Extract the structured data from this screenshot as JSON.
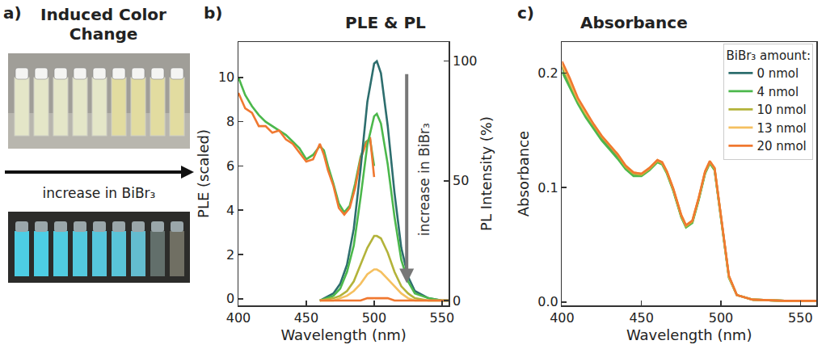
{
  "panel_a": {
    "panel_label": "a)",
    "title": "Induced Color Change",
    "arrow_label": "increase in BiBr₃"
  },
  "chart_data": [
    {
      "panel_label": "b)",
      "type": "line",
      "title": "PLE & PL",
      "x_label": "Wavelength (nm)",
      "y_label": "PLE (scaled)",
      "y2_label": "PL Intensity (%)",
      "xlim": [
        400,
        555
      ],
      "xticks": [
        400,
        450,
        500,
        550
      ],
      "ylim": [
        -0.3,
        11.6
      ],
      "yticks": [
        0,
        2,
        4,
        6,
        8,
        10
      ],
      "y2lim": [
        -2,
        108
      ],
      "y2ticks": [
        0,
        50,
        100
      ],
      "grid": false,
      "annotations": [
        "increase in BiBr₃"
      ],
      "series": [
        {
          "color": "#4cb84c",
          "x": [
            400,
            405,
            410,
            415,
            420,
            425,
            430,
            435,
            440,
            445,
            450,
            455,
            460,
            463,
            466,
            470,
            474,
            478,
            482,
            486,
            490,
            494,
            497,
            500
          ],
          "values": [
            10.0,
            9.2,
            8.7,
            8.3,
            8.0,
            7.8,
            7.6,
            7.4,
            7.1,
            6.8,
            6.3,
            6.5,
            6.9,
            6.7,
            6.0,
            5.2,
            4.3,
            3.9,
            4.2,
            5.2,
            6.4,
            7.1,
            7.2,
            6.0
          ]
        },
        {
          "color": "#f07830",
          "x": [
            400,
            405,
            410,
            415,
            420,
            425,
            430,
            435,
            440,
            445,
            450,
            455,
            460,
            463,
            466,
            470,
            474,
            478,
            482,
            486,
            490,
            494,
            497,
            500
          ],
          "values": [
            9.3,
            8.6,
            8.4,
            7.8,
            7.8,
            7.5,
            7.6,
            7.2,
            7.0,
            6.6,
            6.2,
            6.3,
            7.0,
            6.5,
            5.8,
            5.1,
            4.1,
            3.8,
            4.1,
            5.0,
            6.3,
            7.0,
            7.3,
            5.5
          ]
        },
        {
          "color": "#2d6e6e",
          "axis": "y2",
          "x": [
            460,
            470,
            475,
            480,
            485,
            490,
            495,
            500,
            502,
            505,
            510,
            515,
            520,
            525,
            530,
            540,
            550,
            555
          ],
          "values": [
            0,
            3,
            7,
            15,
            30,
            55,
            83,
            99,
            100,
            95,
            73,
            45,
            22,
            10,
            4,
            1,
            0,
            0
          ]
        },
        {
          "color": "#4cb84c",
          "axis": "y2",
          "x": [
            460,
            470,
            475,
            480,
            485,
            490,
            495,
            500,
            502,
            505,
            510,
            515,
            520,
            525,
            530,
            540,
            550,
            555
          ],
          "values": [
            0,
            2,
            5,
            12,
            23,
            43,
            65,
            77,
            78,
            74,
            57,
            35,
            17,
            8,
            3,
            1,
            0,
            0
          ]
        },
        {
          "color": "#b3b33a",
          "axis": "y2",
          "x": [
            460,
            470,
            475,
            480,
            485,
            490,
            495,
            500,
            502,
            505,
            510,
            515,
            520,
            525,
            530,
            540,
            550,
            555
          ],
          "values": [
            0,
            1,
            2,
            4,
            8,
            15,
            22,
            27,
            27,
            26,
            20,
            12,
            6,
            3,
            1,
            0,
            0,
            0
          ]
        },
        {
          "color": "#f5c060",
          "axis": "y2",
          "x": [
            460,
            470,
            475,
            480,
            485,
            490,
            495,
            500,
            502,
            505,
            510,
            515,
            520,
            525,
            530,
            540,
            550,
            555
          ],
          "values": [
            0,
            0,
            1,
            2,
            4,
            7,
            11,
            13,
            13,
            12,
            9,
            6,
            3,
            1,
            0,
            0,
            0,
            0
          ]
        },
        {
          "color": "#f07830",
          "axis": "y2",
          "x": [
            460,
            470,
            475,
            480,
            485,
            490,
            495,
            500,
            502,
            505,
            510,
            515,
            520,
            525,
            530,
            540,
            550,
            555
          ],
          "values": [
            0,
            0,
            0,
            0,
            0,
            0,
            1,
            1,
            1,
            1,
            1,
            0,
            0,
            0,
            0,
            0,
            0,
            0
          ]
        }
      ]
    },
    {
      "panel_label": "c)",
      "type": "line",
      "title": "Absorbance",
      "x_label": "Wavelength (nm)",
      "y_label": "Absorbance",
      "xlim": [
        400,
        560
      ],
      "xticks": [
        400,
        450,
        500,
        550
      ],
      "ylim": [
        -0.003,
        0.227
      ],
      "yticks": [
        {
          "value": 0,
          "label": "0.0"
        },
        0.1,
        0.2
      ],
      "grid": false,
      "legend": "top right",
      "legend_title": "BiBr₃ amount:",
      "series": [
        {
          "name": "0 nmol",
          "color": "#2d6e6e",
          "x": [
            400,
            405,
            410,
            415,
            420,
            425,
            430,
            435,
            440,
            445,
            450,
            455,
            460,
            463,
            466,
            470,
            475,
            478,
            482,
            486,
            490,
            493,
            496,
            500,
            505,
            510,
            520,
            540,
            560
          ],
          "values": [
            0.205,
            0.19,
            0.175,
            0.163,
            0.153,
            0.143,
            0.135,
            0.127,
            0.118,
            0.112,
            0.111,
            0.116,
            0.123,
            0.121,
            0.113,
            0.098,
            0.075,
            0.066,
            0.07,
            0.09,
            0.113,
            0.122,
            0.116,
            0.075,
            0.022,
            0.006,
            0.002,
            0.001,
            0.001
          ]
        },
        {
          "name": "4 nmol",
          "color": "#4cb84c",
          "x": [
            400,
            405,
            410,
            415,
            420,
            425,
            430,
            435,
            440,
            445,
            450,
            455,
            460,
            463,
            466,
            470,
            475,
            478,
            482,
            486,
            490,
            493,
            496,
            500,
            505,
            510,
            520,
            540,
            560
          ],
          "values": [
            0.201,
            0.187,
            0.173,
            0.161,
            0.151,
            0.141,
            0.133,
            0.125,
            0.116,
            0.11,
            0.11,
            0.115,
            0.122,
            0.12,
            0.112,
            0.097,
            0.074,
            0.065,
            0.069,
            0.089,
            0.112,
            0.121,
            0.115,
            0.074,
            0.021,
            0.006,
            0.002,
            0.001,
            0.001
          ]
        },
        {
          "name": "10 nmol",
          "color": "#b3b33a",
          "x": [
            400,
            405,
            410,
            415,
            420,
            425,
            430,
            435,
            440,
            445,
            450,
            455,
            460,
            463,
            466,
            470,
            475,
            478,
            482,
            486,
            490,
            493,
            496,
            500,
            505,
            510,
            520,
            540,
            560
          ],
          "values": [
            0.206,
            0.191,
            0.176,
            0.164,
            0.154,
            0.144,
            0.136,
            0.128,
            0.118,
            0.112,
            0.111,
            0.116,
            0.123,
            0.121,
            0.113,
            0.098,
            0.075,
            0.066,
            0.07,
            0.09,
            0.113,
            0.122,
            0.116,
            0.075,
            0.022,
            0.006,
            0.002,
            0.001,
            0.001
          ]
        },
        {
          "name": "13 nmol",
          "color": "#f5c060",
          "x": [
            400,
            405,
            410,
            415,
            420,
            425,
            430,
            435,
            440,
            445,
            450,
            455,
            460,
            463,
            466,
            470,
            475,
            478,
            482,
            486,
            490,
            493,
            496,
            500,
            505,
            510,
            520,
            540,
            560
          ],
          "values": [
            0.208,
            0.193,
            0.177,
            0.165,
            0.155,
            0.145,
            0.137,
            0.129,
            0.119,
            0.113,
            0.112,
            0.117,
            0.124,
            0.122,
            0.114,
            0.099,
            0.076,
            0.067,
            0.071,
            0.091,
            0.114,
            0.123,
            0.117,
            0.076,
            0.022,
            0.006,
            0.002,
            0.001,
            0.001
          ]
        },
        {
          "name": "20 nmol",
          "color": "#f07830",
          "x": [
            400,
            405,
            410,
            415,
            420,
            425,
            430,
            435,
            440,
            445,
            450,
            455,
            460,
            463,
            466,
            470,
            475,
            478,
            482,
            486,
            490,
            493,
            496,
            500,
            505,
            510,
            520,
            540,
            560
          ],
          "values": [
            0.21,
            0.195,
            0.178,
            0.166,
            0.155,
            0.145,
            0.137,
            0.129,
            0.119,
            0.113,
            0.112,
            0.117,
            0.124,
            0.122,
            0.114,
            0.099,
            0.076,
            0.067,
            0.071,
            0.091,
            0.114,
            0.123,
            0.117,
            0.076,
            0.023,
            0.006,
            0.002,
            0.001,
            0.001
          ]
        }
      ]
    }
  ]
}
